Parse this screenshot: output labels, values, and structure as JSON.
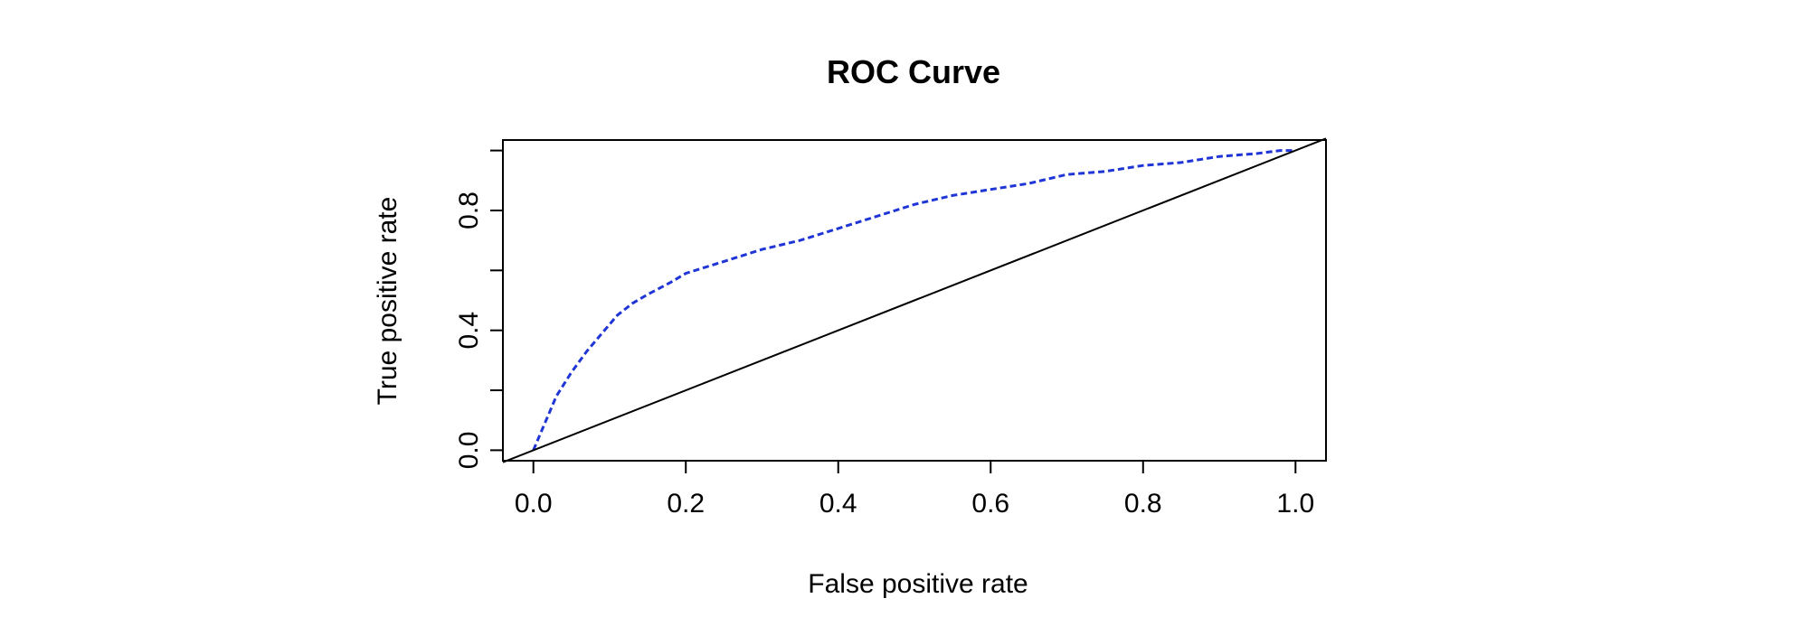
{
  "chart_data": {
    "type": "line",
    "title": "ROC Curve",
    "xlabel": "False positive rate",
    "ylabel": "True positive rate",
    "xlim": [
      -0.04,
      1.04
    ],
    "ylim": [
      -0.035,
      1.035
    ],
    "x_ticks": [
      0.0,
      0.2,
      0.4,
      0.6,
      0.8,
      1.0
    ],
    "x_tick_labels": [
      "0.0",
      "0.2",
      "0.4",
      "0.6",
      "0.8",
      "1.0"
    ],
    "y_ticks": [
      0.0,
      0.2,
      0.4,
      0.6,
      0.8,
      1.0
    ],
    "y_tick_labels": [
      "0.0",
      "",
      "0.4",
      "",
      "0.8",
      ""
    ],
    "grid": false,
    "legend": "none",
    "series": [
      {
        "style": "dashed",
        "color": "#1f35d6",
        "x": [
          0.0,
          0.01,
          0.02,
          0.03,
          0.05,
          0.07,
          0.09,
          0.11,
          0.13,
          0.15,
          0.18,
          0.2,
          0.25,
          0.3,
          0.35,
          0.4,
          0.45,
          0.5,
          0.55,
          0.6,
          0.65,
          0.7,
          0.75,
          0.8,
          0.85,
          0.9,
          0.95,
          0.98,
          1.0
        ],
        "y": [
          0.0,
          0.06,
          0.12,
          0.18,
          0.26,
          0.33,
          0.39,
          0.45,
          0.49,
          0.52,
          0.56,
          0.59,
          0.63,
          0.67,
          0.7,
          0.74,
          0.78,
          0.82,
          0.85,
          0.87,
          0.89,
          0.92,
          0.93,
          0.95,
          0.96,
          0.98,
          0.99,
          1.0,
          1.0
        ]
      },
      {
        "style": "solid",
        "color": "#000000",
        "x": [
          -0.04,
          1.04
        ],
        "y": [
          -0.04,
          1.04
        ]
      }
    ]
  }
}
